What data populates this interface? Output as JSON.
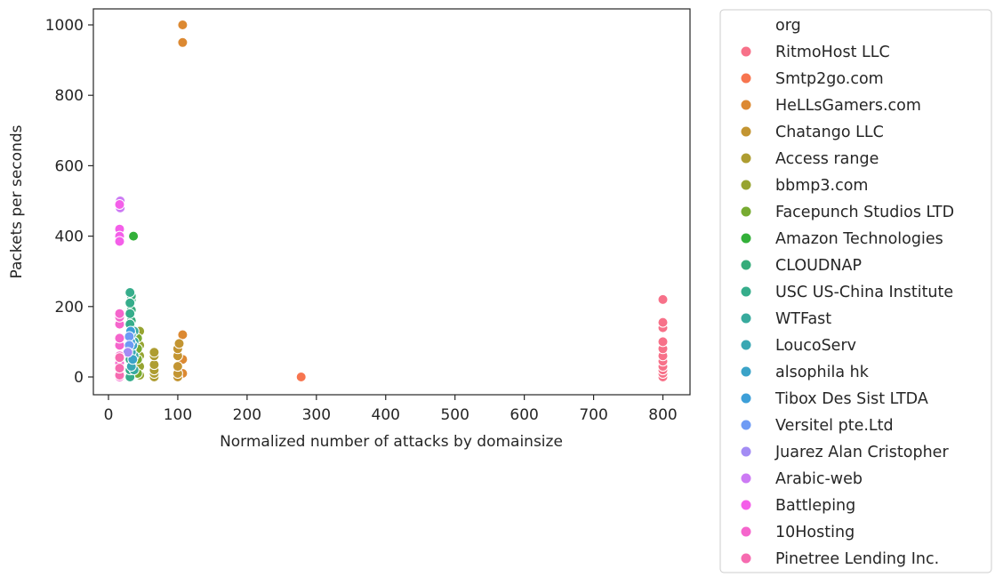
{
  "chart_data": {
    "type": "scatter",
    "title": "",
    "xlabel": "Normalized number of attacks by domainsize",
    "ylabel": "Packets per seconds",
    "xlim": [
      -20,
      830
    ],
    "ylim": [
      -50,
      1050
    ],
    "x_ticks": [
      0,
      100,
      200,
      300,
      400,
      500,
      600,
      700,
      800
    ],
    "y_ticks": [
      0,
      200,
      400,
      600,
      800,
      1000
    ],
    "grid": false,
    "legend_title": "org",
    "legend_placement": "outside-right",
    "series": [
      {
        "name": "RitmoHost LLC",
        "color": "#f77189",
        "x": [
          800,
          800,
          800,
          800,
          800,
          800,
          800,
          800,
          800,
          800,
          800
        ],
        "y": [
          0,
          10,
          20,
          30,
          45,
          60,
          80,
          100,
          140,
          155,
          220
        ]
      },
      {
        "name": "Smtp2go.com",
        "color": "#f7754f",
        "x": [
          278
        ],
        "y": [
          0
        ]
      },
      {
        "name": "HeLLsGamers.com",
        "color": "#dc8932",
        "x": [
          107,
          107,
          107,
          107,
          107
        ],
        "y": [
          1000,
          950,
          120,
          50,
          10
        ]
      },
      {
        "name": "Chatango LLC",
        "color": "#c39532",
        "x": [
          100,
          100,
          100,
          100,
          100,
          102
        ],
        "y": [
          0,
          10,
          30,
          60,
          80,
          95
        ]
      },
      {
        "name": "Access range",
        "color": "#ae9d31",
        "x": [
          66,
          66,
          66,
          66,
          66,
          66
        ],
        "y": [
          0,
          10,
          20,
          35,
          60,
          70
        ]
      },
      {
        "name": "bbmp3.com",
        "color": "#97a431",
        "x": [
          45,
          45,
          45,
          45,
          45
        ],
        "y": [
          5,
          30,
          60,
          90,
          130
        ]
      },
      {
        "name": "Facepunch Studios LTD",
        "color": "#77ab31",
        "x": [
          42,
          42,
          42,
          42
        ],
        "y": [
          10,
          50,
          80,
          110
        ]
      },
      {
        "name": "Amazon Technologies",
        "color": "#33b039",
        "x": [
          36
        ],
        "y": [
          400
        ]
      },
      {
        "name": "CLOUDNAP",
        "color": "#35ac7a",
        "x": [
          33,
          33,
          33,
          33,
          33,
          33,
          33,
          33
        ],
        "y": [
          40,
          80,
          100,
          140,
          160,
          190,
          220,
          230
        ]
      },
      {
        "name": "USC US-China Institute",
        "color": "#36ad8b",
        "x": [
          31,
          31,
          31,
          31,
          31,
          31,
          31,
          31,
          31
        ],
        "y": [
          0,
          20,
          50,
          80,
          110,
          150,
          180,
          210,
          240
        ]
      },
      {
        "name": "WTFast",
        "color": "#38aa9d",
        "x": [
          37,
          37,
          37,
          37
        ],
        "y": [
          20,
          60,
          100,
          130
        ]
      },
      {
        "name": "LoucoServ",
        "color": "#39a7b3",
        "x": [
          33,
          33,
          33
        ],
        "y": [
          30,
          70,
          120
        ]
      },
      {
        "name": "alsophila hk",
        "color": "#3ba3c8",
        "x": [
          35,
          35
        ],
        "y": [
          50,
          90
        ]
      },
      {
        "name": "Tibox Des Sist LTDA",
        "color": "#3d9fd8",
        "x": [
          32,
          32
        ],
        "y": [
          100,
          130
        ]
      },
      {
        "name": "Versitel pte.Ltd",
        "color": "#6e9bf4",
        "x": [
          30,
          30
        ],
        "y": [
          115,
          90
        ]
      },
      {
        "name": "Juarez Alan Cristopher",
        "color": "#a38cf4",
        "x": [
          28
        ],
        "y": [
          70
        ]
      },
      {
        "name": "Arabic-web",
        "color": "#cc7af4",
        "x": [
          17,
          17
        ],
        "y": [
          500,
          480
        ]
      },
      {
        "name": "Battleping",
        "color": "#f45fe9",
        "x": [
          16,
          16,
          16,
          16
        ],
        "y": [
          490,
          420,
          400,
          385
        ]
      },
      {
        "name": "10Hosting",
        "color": "#f565cc",
        "x": [
          16,
          16,
          16,
          16,
          16,
          16,
          16,
          16,
          16,
          16,
          16
        ],
        "y": [
          0,
          10,
          20,
          30,
          40,
          60,
          90,
          110,
          150,
          170,
          180
        ]
      },
      {
        "name": "Pinetree Lending Inc.",
        "color": "#f66bb0",
        "x": [
          16,
          16,
          16
        ],
        "y": [
          5,
          25,
          55
        ]
      }
    ]
  }
}
